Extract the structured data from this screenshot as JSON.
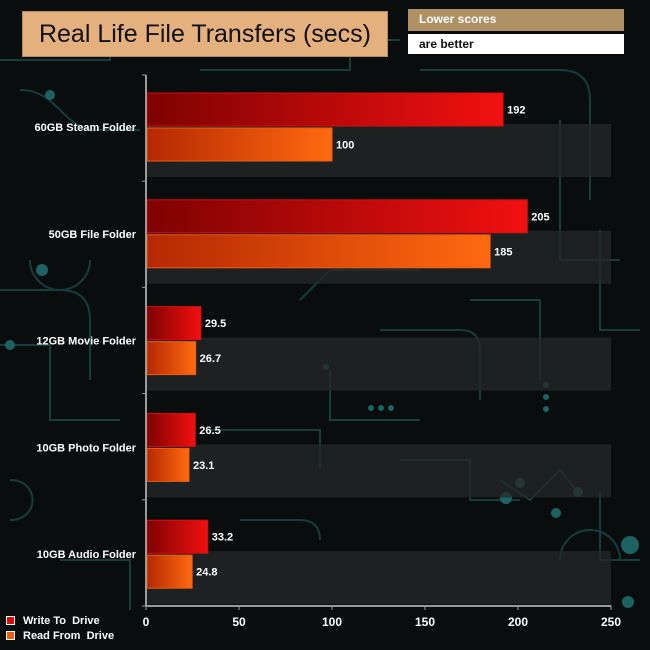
{
  "header": {
    "title": "Real Life File Transfers (secs)",
    "note_line1": "Lower scores",
    "note_line2": "are better"
  },
  "colors": {
    "write": "#d60e0e",
    "read": "#f25a10"
  },
  "chart_data": {
    "type": "bar",
    "orientation": "horizontal",
    "categories": [
      "60GB Steam Folder",
      "50GB File Folder",
      "12GB Movie Folder",
      "10GB Photo Folder",
      "10GB Audio Folder"
    ],
    "series": [
      {
        "name": "Write To  Drive",
        "values": [
          192,
          205,
          29.5,
          26.5,
          33.2
        ]
      },
      {
        "name": "Read From  Drive",
        "values": [
          100,
          185,
          26.7,
          23.1,
          24.8
        ]
      }
    ],
    "value_labels": [
      [
        "192",
        "205",
        "29.5",
        "26.5",
        "33.2"
      ],
      [
        "100",
        "185",
        "26.7",
        "23.1",
        "24.8"
      ]
    ],
    "xlim": [
      0,
      250
    ],
    "xticks": [
      "0",
      "50",
      "100",
      "150",
      "200",
      "250"
    ],
    "xlabel": "",
    "ylabel": "",
    "legend": "bottom-left"
  }
}
